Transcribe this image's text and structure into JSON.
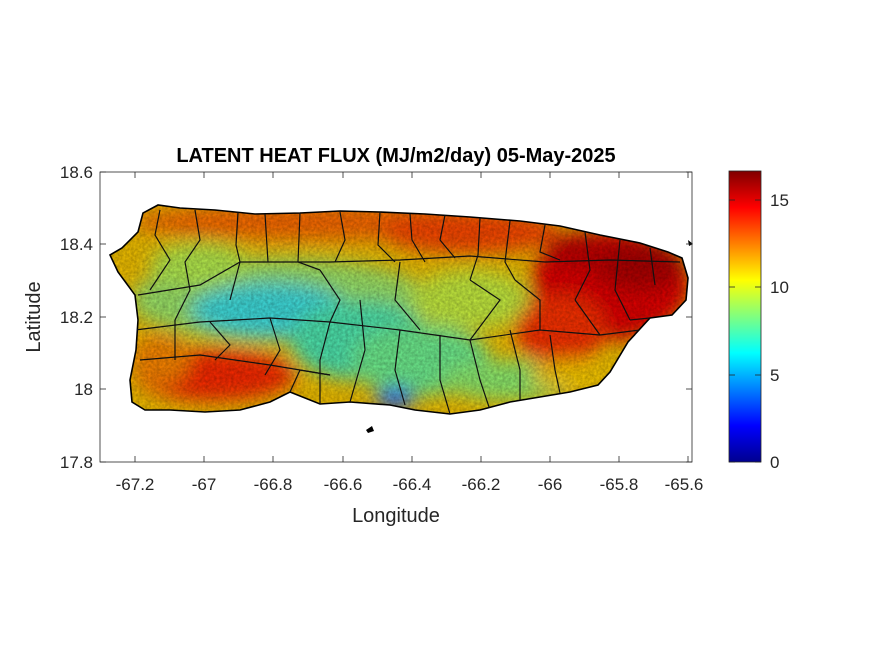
{
  "map": {
    "title": "LATENT HEAT FLUX (MJ/m2/day) 05-May-2025",
    "xlabel": "Longitude",
    "ylabel": "Latitude",
    "x_ticks": [
      "-67.2",
      "-67",
      "-66.8",
      "-66.6",
      "-66.4",
      "-66.2",
      "-66",
      "-65.8",
      "-65.6"
    ],
    "y_ticks": [
      "18.6",
      "18.4",
      "18.2",
      "18",
      "17.8"
    ],
    "colorbar_ticks": [
      "15",
      "10",
      "5",
      "0"
    ],
    "colormap": "jet",
    "colorbar_range": [
      0,
      16.6
    ],
    "colors": {
      "jet": [
        "#00008f",
        "#0000ff",
        "#00ffff",
        "#ffff00",
        "#ff0000",
        "#800000"
      ]
    }
  },
  "chart_data": {
    "type": "heatmap",
    "title": "LATENT HEAT FLUX (MJ/m2/day) 05-May-2025",
    "xlabel": "Longitude",
    "ylabel": "Latitude",
    "xlim": [
      -67.3,
      -65.59
    ],
    "ylim": [
      17.8,
      18.6
    ],
    "clim": [
      0,
      16.6
    ],
    "colorbar_ticks": [
      0,
      5,
      10,
      15
    ],
    "grid": false
  }
}
